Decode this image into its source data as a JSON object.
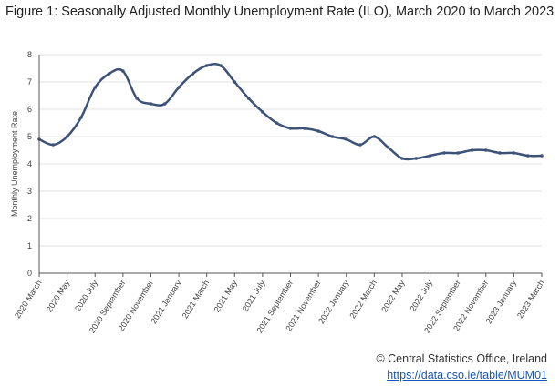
{
  "header": {
    "title": "Figure 1: Seasonally Adjusted Monthly Unemployment Rate (ILO), March 2020 to March 2023"
  },
  "footer": {
    "credit": "© Central Statistics Office, Ireland",
    "link": "https://data.cso.ie/table/MUM01"
  },
  "colors": {
    "line": "#3d5278",
    "grid": "#e0e0e0",
    "axis": "#555555"
  },
  "chart_data": {
    "type": "line",
    "title": "Figure 1: Seasonally Adjusted Monthly Unemployment Rate (ILO), March 2020 to March 2023",
    "ylabel": "Monthly Unemployment Rate",
    "xlabel": "",
    "ylim": [
      0,
      8
    ],
    "yticks": [
      0,
      1,
      2,
      3,
      4,
      5,
      6,
      7,
      8
    ],
    "grid": true,
    "legend": "none",
    "x": [
      "2020 March",
      "2020 April",
      "2020 May",
      "2020 June",
      "2020 July",
      "2020 August",
      "2020 September",
      "2020 October",
      "2020 November",
      "2020 December",
      "2021 January",
      "2021 February",
      "2021 March",
      "2021 April",
      "2021 May",
      "2021 June",
      "2021 July",
      "2021 August",
      "2021 September",
      "2021 October",
      "2021 November",
      "2021 December",
      "2022 January",
      "2022 February",
      "2022 March",
      "2022 April",
      "2022 May",
      "2022 June",
      "2022 July",
      "2022 August",
      "2022 September",
      "2022 October",
      "2022 November",
      "2022 December",
      "2023 January",
      "2023 February",
      "2023 March"
    ],
    "tick_labels": [
      "2020 March",
      "2020 May",
      "2020 July",
      "2020 September",
      "2020 November",
      "2021 January",
      "2021 March",
      "2021 May",
      "2021 July",
      "2021 September",
      "2021 November",
      "2022 January",
      "2022 March",
      "2022 May",
      "2022 July",
      "2022 September",
      "2022 November",
      "2023 January",
      "2023 March"
    ],
    "values": [
      4.9,
      4.7,
      5.0,
      5.7,
      6.8,
      7.3,
      7.4,
      6.4,
      6.2,
      6.2,
      6.8,
      7.3,
      7.6,
      7.6,
      7.0,
      6.4,
      5.9,
      5.5,
      5.3,
      5.3,
      5.2,
      5.0,
      4.9,
      4.7,
      5.0,
      4.6,
      4.2,
      4.2,
      4.3,
      4.4,
      4.4,
      4.5,
      4.5,
      4.4,
      4.4,
      4.3,
      4.3
    ]
  }
}
